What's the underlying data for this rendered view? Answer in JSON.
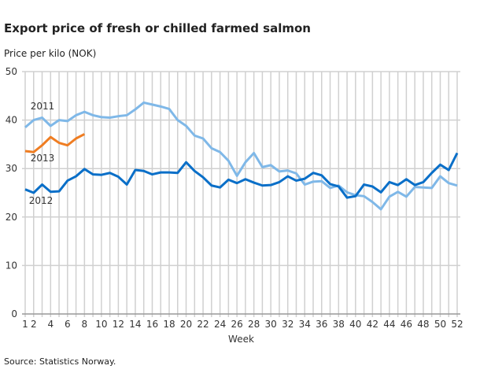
{
  "chart_data": {
    "type": "line",
    "title": "Export price of fresh or chilled farmed salmon",
    "ylabel": "Price per kilo (NOK)",
    "xlabel": "Week",
    "source": "Source: Statistics Norway.",
    "ylim": [
      0,
      50
    ],
    "yticks": [
      0,
      10,
      20,
      30,
      40,
      50
    ],
    "xticks": [
      1,
      2,
      4,
      6,
      8,
      10,
      12,
      14,
      16,
      18,
      20,
      22,
      24,
      26,
      28,
      30,
      32,
      34,
      36,
      38,
      40,
      42,
      44,
      46,
      48,
      50,
      52
    ],
    "xlim": [
      1,
      52
    ],
    "grid": true,
    "series": [
      {
        "name": "2011",
        "color": "#7fb8e8",
        "values": [
          38.5,
          40,
          40.5,
          38.8,
          40,
          39.8,
          41,
          41.7,
          41,
          40.6,
          40.5,
          40.8,
          41,
          42.2,
          43.6,
          43.2,
          42.8,
          42.3,
          40,
          38.8,
          36.8,
          36.2,
          34.2,
          33.4,
          31.6,
          28.5,
          31.3,
          33.2,
          30.3,
          30.7,
          29.4,
          29.6,
          29,
          26.7,
          27.3,
          27.4,
          26,
          26.5,
          25.1,
          24.5,
          24.3,
          23.1,
          21.6,
          24.2,
          25.2,
          24.2,
          26.2,
          26.1,
          26,
          28.4,
          27,
          26.5
        ]
      },
      {
        "name": "2012",
        "color": "#0a6fc8",
        "values": [
          25.7,
          25,
          26.7,
          25.2,
          25.3,
          27.5,
          28.4,
          29.9,
          28.8,
          28.7,
          29.1,
          28.3,
          26.7,
          29.7,
          29.5,
          28.8,
          29.2,
          29.2,
          29.1,
          31.3,
          29.5,
          28.2,
          26.5,
          26.1,
          27.7,
          27,
          27.8,
          27.1,
          26.5,
          26.6,
          27.2,
          28.4,
          27.5,
          27.9,
          29.1,
          28.6,
          26.8,
          26.3,
          24,
          24.3,
          26.7,
          26.3,
          25.1,
          27.2,
          26.6,
          27.8,
          26.6,
          27.2,
          29.1,
          30.8,
          29.7,
          33.2
        ]
      },
      {
        "name": "2013",
        "color": "#ef7d22",
        "values": [
          33.6,
          33.4,
          34.8,
          36.5,
          35.3,
          34.8,
          36.2,
          37.1
        ]
      }
    ]
  }
}
